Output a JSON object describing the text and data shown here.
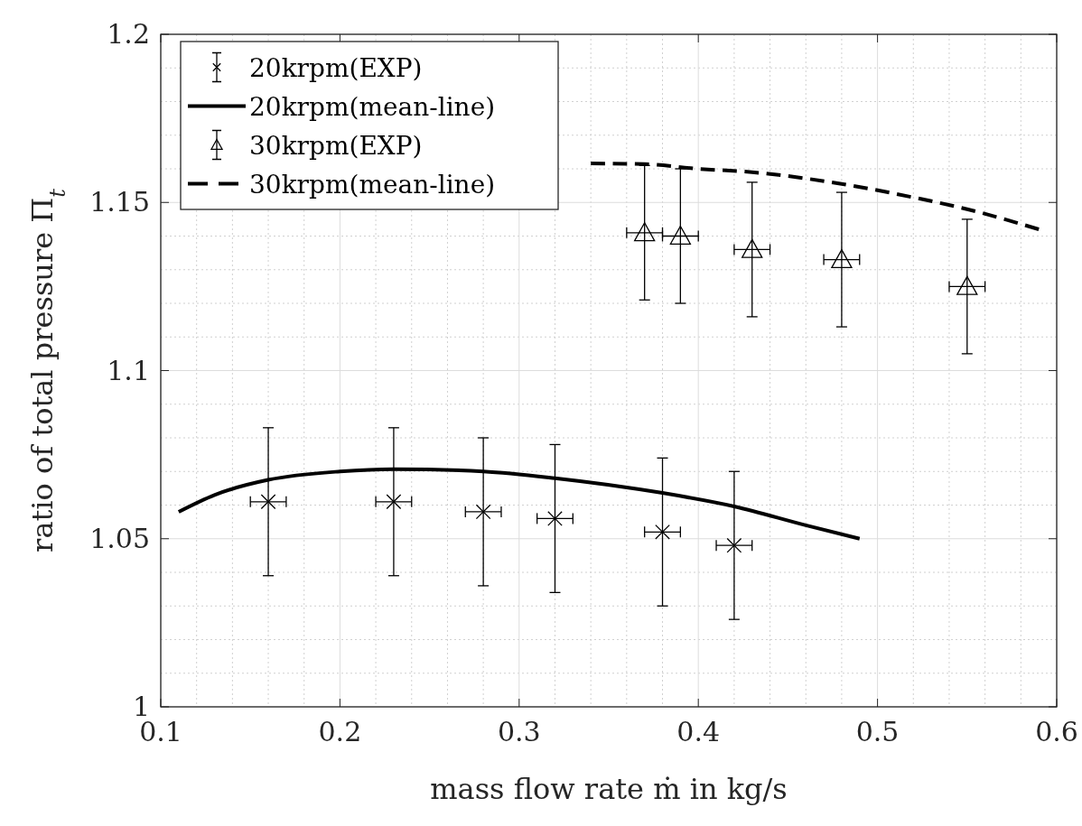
{
  "chart_data": {
    "type": "scatter",
    "xlabel": "mass flow rate ṁ in kg/s",
    "ylabel": "ratio of total pressure Π$_{t}$",
    "xlim": [
      0.1,
      0.6
    ],
    "xticks": [
      0.1,
      0.2,
      0.3,
      0.4,
      0.5,
      0.6
    ],
    "ylim": [
      1,
      1.2
    ],
    "yticks": [
      1,
      1.05,
      1.1,
      1.15,
      1.2
    ],
    "grid": true,
    "legend": "top left",
    "series": [
      {
        "name": "20krpm(EXP)",
        "marker": "cross",
        "color": "#000000",
        "x": [
          0.16,
          0.23,
          0.28,
          0.32,
          0.38,
          0.42
        ],
        "values": [
          1.061,
          1.061,
          1.058,
          1.056,
          1.052,
          1.048
        ],
        "errors": [
          0.022,
          0.022,
          0.022,
          0.022,
          0.022,
          0.022
        ],
        "xerrors": [
          0.01,
          0.01,
          0.01,
          0.01,
          0.01,
          0.01
        ]
      },
      {
        "name": "20krpm(mean-line)",
        "type": "line",
        "line_style": "solid",
        "color": "#000000",
        "x": [
          0.11,
          0.13,
          0.16,
          0.2,
          0.23,
          0.28,
          0.32,
          0.38,
          0.42,
          0.46,
          0.49
        ],
        "values": [
          1.058,
          1.063,
          1.0675,
          1.07,
          1.0707,
          1.07,
          1.068,
          1.0636,
          1.0596,
          1.054,
          1.05
        ]
      },
      {
        "name": "30krpm(EXP)",
        "marker": "triangle",
        "color": "#000000",
        "x": [
          0.37,
          0.39,
          0.43,
          0.48,
          0.55
        ],
        "values": [
          1.141,
          1.14,
          1.136,
          1.133,
          1.125
        ],
        "errors": [
          0.02,
          0.02,
          0.02,
          0.02,
          0.02
        ],
        "xerrors": [
          0.01,
          0.01,
          0.01,
          0.01,
          0.01
        ]
      },
      {
        "name": "30krpm(mean-line)",
        "type": "line",
        "line_style": "dashed",
        "color": "#000000",
        "x": [
          0.34,
          0.37,
          0.4,
          0.43,
          0.48,
          0.52,
          0.55,
          0.59
        ],
        "values": [
          1.1616,
          1.1614,
          1.16,
          1.159,
          1.1555,
          1.1515,
          1.148,
          1.142
        ]
      }
    ]
  }
}
